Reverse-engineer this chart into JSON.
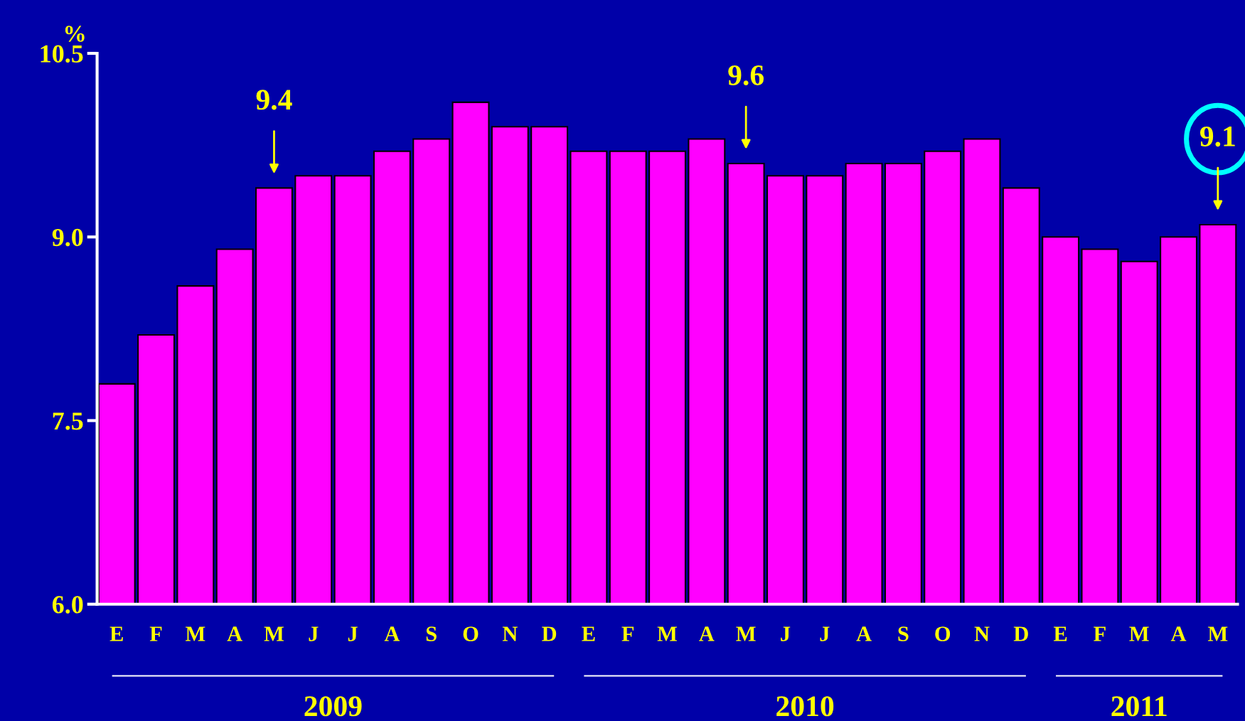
{
  "chart_data": {
    "type": "bar",
    "ylabel": "%",
    "categories": [
      "E",
      "F",
      "M",
      "A",
      "M",
      "J",
      "J",
      "A",
      "S",
      "O",
      "N",
      "D",
      "E",
      "F",
      "M",
      "A",
      "M",
      "J",
      "J",
      "A",
      "S",
      "O",
      "N",
      "D",
      "E",
      "F",
      "M",
      "A",
      "M"
    ],
    "values": [
      7.8,
      8.2,
      8.6,
      8.9,
      9.4,
      9.5,
      9.5,
      9.7,
      9.8,
      10.1,
      9.9,
      9.9,
      9.7,
      9.7,
      9.7,
      9.8,
      9.6,
      9.5,
      9.5,
      9.6,
      9.6,
      9.7,
      9.8,
      9.4,
      9.0,
      8.9,
      8.8,
      9.0,
      9.1
    ],
    "value_labels": [
      null,
      null,
      null,
      null,
      "9.4",
      null,
      null,
      null,
      null,
      null,
      null,
      null,
      null,
      null,
      null,
      null,
      "9.6",
      null,
      null,
      null,
      null,
      null,
      null,
      null,
      null,
      null,
      null,
      null,
      "9.1"
    ],
    "color": "#ff00ff",
    "ylim": [
      6,
      10.5
    ],
    "yticks": [
      {
        "value": 6,
        "label": "6.0"
      },
      7.5,
      {
        "value": 9,
        "label": "9.0"
      },
      10.5
    ],
    "annotations": [
      "2009",
      "2010",
      "2011"
    ],
    "grid": false,
    "legend": false
  }
}
